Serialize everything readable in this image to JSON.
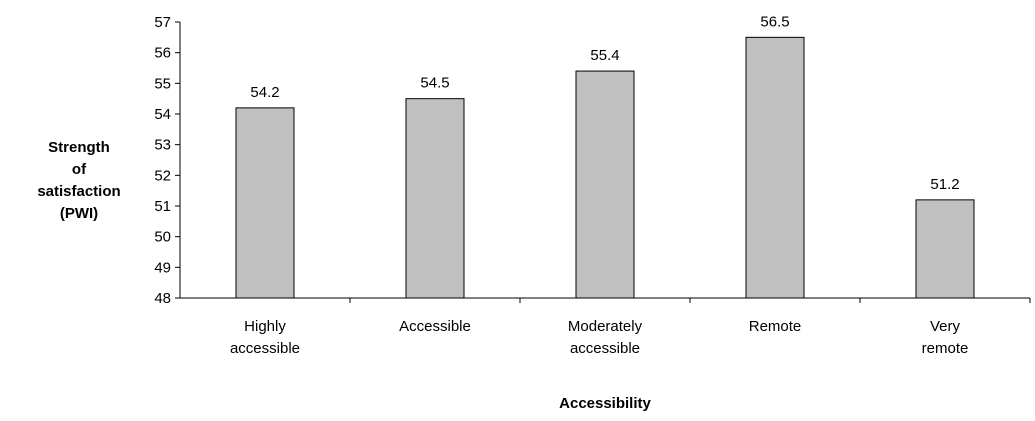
{
  "chart_data": {
    "type": "bar",
    "title": "",
    "categories": [
      [
        "Highly",
        "accessible"
      ],
      [
        "Accessible"
      ],
      [
        "Moderately",
        "accessible"
      ],
      [
        "Remote"
      ],
      [
        "Very",
        "remote"
      ]
    ],
    "values": [
      54.2,
      54.5,
      55.4,
      56.5,
      51.2
    ],
    "data_labels": [
      "54.2",
      "54.5",
      "55.4",
      "56.5",
      "51.2"
    ],
    "ylabel": [
      "Strength",
      "of",
      "satisfaction",
      "(PWI)"
    ],
    "xlabel": "Accessibility",
    "ylim": [
      48,
      57
    ],
    "yticks": [
      48,
      49,
      50,
      51,
      52,
      53,
      54,
      55,
      56,
      57
    ],
    "grid": false,
    "legend": "none",
    "colors": {
      "bar_fill": "#c0c0c0",
      "bar_stroke": "#000000",
      "axis": "#000000"
    }
  }
}
